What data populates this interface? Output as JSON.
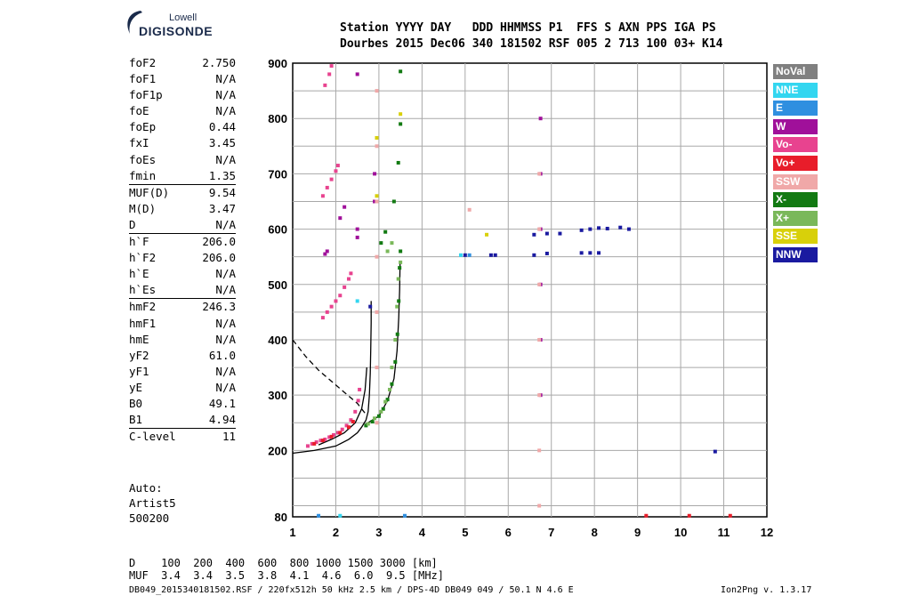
{
  "logo": {
    "line1": "Lowell",
    "line2": "DIGISONDE"
  },
  "header": {
    "line1": "Station YYYY DAY   DDD HHMMSS P1  FFS S AXN PPS IGA PS",
    "line2": "Dourbes 2015 Dec06 340 181502 RSF 005 2 713 100 03+ K14"
  },
  "params": {
    "group1": [
      {
        "k": "foF2",
        "v": "2.750"
      },
      {
        "k": "foF1",
        "v": "N/A"
      },
      {
        "k": "foF1p",
        "v": "N/A"
      },
      {
        "k": "foE",
        "v": "N/A"
      },
      {
        "k": "foEp",
        "v": "0.44"
      },
      {
        "k": "fxI",
        "v": "3.45"
      },
      {
        "k": "foEs",
        "v": "N/A"
      },
      {
        "k": "fmin",
        "v": "1.35"
      }
    ],
    "group2": [
      {
        "k": "MUF(D)",
        "v": "9.54"
      },
      {
        "k": "M(D)",
        "v": "3.47"
      },
      {
        "k": "D",
        "v": "N/A"
      }
    ],
    "group3": [
      {
        "k": "h`F",
        "v": "206.0"
      },
      {
        "k": "h`F2",
        "v": "206.0"
      },
      {
        "k": "h`E",
        "v": "N/A"
      },
      {
        "k": "h`Es",
        "v": "N/A"
      }
    ],
    "group4": [
      {
        "k": "hmF2",
        "v": "246.3"
      },
      {
        "k": "hmF1",
        "v": "N/A"
      },
      {
        "k": "hmE",
        "v": "N/A"
      },
      {
        "k": "yF2",
        "v": "61.0"
      },
      {
        "k": "yF1",
        "v": "N/A"
      },
      {
        "k": "yE",
        "v": "N/A"
      },
      {
        "k": "B0",
        "v": "49.1"
      },
      {
        "k": "B1",
        "v": "4.94"
      }
    ],
    "group5": [
      {
        "k": "C-level",
        "v": "11"
      }
    ]
  },
  "auto": {
    "line1": "Auto:",
    "line2": "Artist5",
    "line3": "500200"
  },
  "legend": [
    {
      "label": "NoVal",
      "color": "#808080"
    },
    {
      "label": "NNE",
      "color": "#33d6f0"
    },
    {
      "label": "E",
      "color": "#2f8fe0"
    },
    {
      "label": "W",
      "color": "#a0109a"
    },
    {
      "label": "Vo-",
      "color": "#e8438f"
    },
    {
      "label": "Vo+",
      "color": "#e81d2a"
    },
    {
      "label": "SSW",
      "color": "#f0a8a8"
    },
    {
      "label": "X-",
      "color": "#127a12"
    },
    {
      "label": "X+",
      "color": "#7ab85a"
    },
    {
      "label": "SSE",
      "color": "#d8d00a"
    },
    {
      "label": "NNW",
      "color": "#1a1aa0"
    }
  ],
  "footer": {
    "dline": "D    100  200  400  600  800 1000 1500 3000 [km]",
    "mufline": "MUF  3.4  3.4  3.5  3.8  4.1  4.6  6.0  9.5 [MHz]",
    "file": "DB049_2015340181502.RSF / 220fx512h 50 kHz 2.5 km / DPS-4D DB049 049 / 50.1 N 4.6 E",
    "version": "Ion2Png v. 1.3.17"
  },
  "chart_data": {
    "type": "scatter",
    "title": "",
    "xlabel": "",
    "ylabel": "",
    "xlim": [
      1,
      12
    ],
    "ylim": [
      80,
      900
    ],
    "x_ticks": [
      "1",
      "2",
      "3",
      "4",
      "5",
      "6",
      "7",
      "8",
      "9",
      "10",
      "11",
      "12"
    ],
    "y_ticks": [
      "80",
      "200",
      "300",
      "400",
      "500",
      "600",
      "700",
      "800",
      "900"
    ],
    "grid": true,
    "legend_position": "right",
    "series": [
      {
        "name": "Vo-",
        "color": "#e8438f",
        "points": [
          [
            1.35,
            208
          ],
          [
            1.45,
            212
          ],
          [
            1.55,
            215
          ],
          [
            1.65,
            218
          ],
          [
            1.75,
            220
          ],
          [
            1.85,
            224
          ],
          [
            1.95,
            228
          ],
          [
            2.05,
            232
          ],
          [
            2.15,
            238
          ],
          [
            2.25,
            245
          ],
          [
            2.35,
            255
          ],
          [
            2.45,
            270
          ],
          [
            2.52,
            290
          ],
          [
            2.55,
            310
          ],
          [
            1.7,
            440
          ],
          [
            1.8,
            450
          ],
          [
            1.9,
            460
          ],
          [
            2.0,
            470
          ],
          [
            2.1,
            480
          ],
          [
            2.2,
            495
          ],
          [
            2.3,
            510
          ],
          [
            2.35,
            520
          ],
          [
            1.7,
            660
          ],
          [
            1.8,
            675
          ],
          [
            1.9,
            690
          ],
          [
            2.0,
            705
          ],
          [
            2.05,
            715
          ],
          [
            1.75,
            860
          ],
          [
            1.85,
            880
          ],
          [
            1.9,
            895
          ]
        ]
      },
      {
        "name": "W",
        "color": "#a0109a",
        "points": [
          [
            1.75,
            555
          ],
          [
            1.8,
            560
          ],
          [
            2.1,
            620
          ],
          [
            2.2,
            640
          ],
          [
            2.5,
            585
          ],
          [
            2.5,
            600
          ],
          [
            2.5,
            880
          ],
          [
            2.9,
            650
          ],
          [
            2.9,
            700
          ],
          [
            6.75,
            300
          ],
          [
            6.75,
            400
          ],
          [
            6.75,
            500
          ],
          [
            6.75,
            600
          ],
          [
            6.75,
            700
          ],
          [
            6.75,
            800
          ]
        ]
      },
      {
        "name": "Vo+",
        "color": "#e81d2a",
        "points": [
          [
            1.5,
            212
          ],
          [
            1.7,
            218
          ],
          [
            1.9,
            225
          ],
          [
            2.1,
            232
          ],
          [
            2.3,
            242
          ],
          [
            2.4,
            252
          ],
          [
            9.2,
            82
          ],
          [
            10.2,
            82
          ],
          [
            11.15,
            82
          ]
        ]
      },
      {
        "name": "SSW",
        "color": "#f0a8a8",
        "points": [
          [
            2.95,
            250
          ],
          [
            2.95,
            350
          ],
          [
            2.95,
            450
          ],
          [
            2.95,
            550
          ],
          [
            2.95,
            650
          ],
          [
            2.95,
            750
          ],
          [
            2.95,
            850
          ],
          [
            6.72,
            100
          ],
          [
            6.72,
            200
          ],
          [
            6.72,
            300
          ],
          [
            6.72,
            400
          ],
          [
            6.72,
            500
          ],
          [
            6.72,
            600
          ],
          [
            6.72,
            700
          ],
          [
            5.1,
            635
          ]
        ]
      },
      {
        "name": "X-",
        "color": "#127a12",
        "points": [
          [
            2.7,
            245
          ],
          [
            2.85,
            252
          ],
          [
            3.0,
            262
          ],
          [
            3.1,
            275
          ],
          [
            3.2,
            292
          ],
          [
            3.3,
            320
          ],
          [
            3.38,
            360
          ],
          [
            3.43,
            410
          ],
          [
            3.46,
            470
          ],
          [
            3.48,
            530
          ],
          [
            3.5,
            560
          ],
          [
            3.05,
            575
          ],
          [
            3.15,
            595
          ],
          [
            3.35,
            650
          ],
          [
            3.45,
            720
          ],
          [
            3.5,
            790
          ],
          [
            3.5,
            885
          ]
        ]
      },
      {
        "name": "X+",
        "color": "#7ab85a",
        "points": [
          [
            2.75,
            248
          ],
          [
            2.9,
            258
          ],
          [
            3.05,
            270
          ],
          [
            3.15,
            288
          ],
          [
            3.25,
            310
          ],
          [
            3.3,
            350
          ],
          [
            3.38,
            400
          ],
          [
            3.42,
            460
          ],
          [
            3.45,
            510
          ],
          [
            3.5,
            540
          ],
          [
            3.2,
            560
          ],
          [
            3.3,
            575
          ]
        ]
      },
      {
        "name": "SSE",
        "color": "#d8d00a",
        "points": [
          [
            2.95,
            660
          ],
          [
            2.95,
            765
          ],
          [
            3.5,
            808
          ],
          [
            5.5,
            590
          ]
        ]
      },
      {
        "name": "NNW",
        "color": "#1a1aa0",
        "points": [
          [
            6.6,
            590
          ],
          [
            6.9,
            592
          ],
          [
            7.2,
            592
          ],
          [
            7.7,
            598
          ],
          [
            7.9,
            600
          ],
          [
            8.1,
            602
          ],
          [
            8.3,
            601
          ],
          [
            8.6,
            603
          ],
          [
            8.8,
            600
          ],
          [
            6.6,
            553
          ],
          [
            6.9,
            556
          ],
          [
            7.7,
            557
          ],
          [
            7.9,
            557
          ],
          [
            8.1,
            557
          ],
          [
            5.6,
            553
          ],
          [
            5.7,
            553
          ],
          [
            5.0,
            553
          ],
          [
            10.8,
            198
          ],
          [
            2.8,
            460
          ]
        ]
      },
      {
        "name": "NNE",
        "color": "#33d6f0",
        "points": [
          [
            2.5,
            470
          ],
          [
            2.1,
            82
          ],
          [
            4.9,
            553
          ]
        ]
      },
      {
        "name": "E",
        "color": "#2f8fe0",
        "points": [
          [
            5.1,
            553
          ],
          [
            1.6,
            82
          ],
          [
            3.6,
            82
          ]
        ]
      }
    ],
    "curves": [
      {
        "name": "h-profile",
        "style": "solid",
        "points": [
          [
            1.0,
            195
          ],
          [
            1.5,
            200
          ],
          [
            2.0,
            208
          ],
          [
            2.3,
            220
          ],
          [
            2.5,
            232
          ],
          [
            2.6,
            242
          ],
          [
            2.7,
            255
          ],
          [
            2.75,
            270
          ],
          [
            2.78,
            300
          ],
          [
            2.8,
            340
          ],
          [
            2.81,
            380
          ],
          [
            2.82,
            430
          ],
          [
            2.82,
            470
          ]
        ]
      },
      {
        "name": "trace-fit",
        "style": "solid",
        "points": [
          [
            1.6,
            210
          ],
          [
            1.9,
            220
          ],
          [
            2.2,
            232
          ],
          [
            2.45,
            250
          ],
          [
            2.6,
            275
          ],
          [
            2.68,
            310
          ],
          [
            2.72,
            350
          ]
        ]
      },
      {
        "name": "x-fit",
        "style": "solid",
        "points": [
          [
            2.7,
            248
          ],
          [
            3.0,
            262
          ],
          [
            3.2,
            290
          ],
          [
            3.35,
            330
          ],
          [
            3.42,
            380
          ],
          [
            3.46,
            440
          ],
          [
            3.48,
            490
          ],
          [
            3.49,
            540
          ]
        ]
      },
      {
        "name": "muf",
        "style": "dashed",
        "points": [
          [
            1.0,
            400
          ],
          [
            1.3,
            370
          ],
          [
            1.6,
            345
          ],
          [
            1.9,
            325
          ],
          [
            2.2,
            305
          ],
          [
            2.5,
            285
          ],
          [
            2.7,
            265
          ]
        ]
      }
    ]
  }
}
